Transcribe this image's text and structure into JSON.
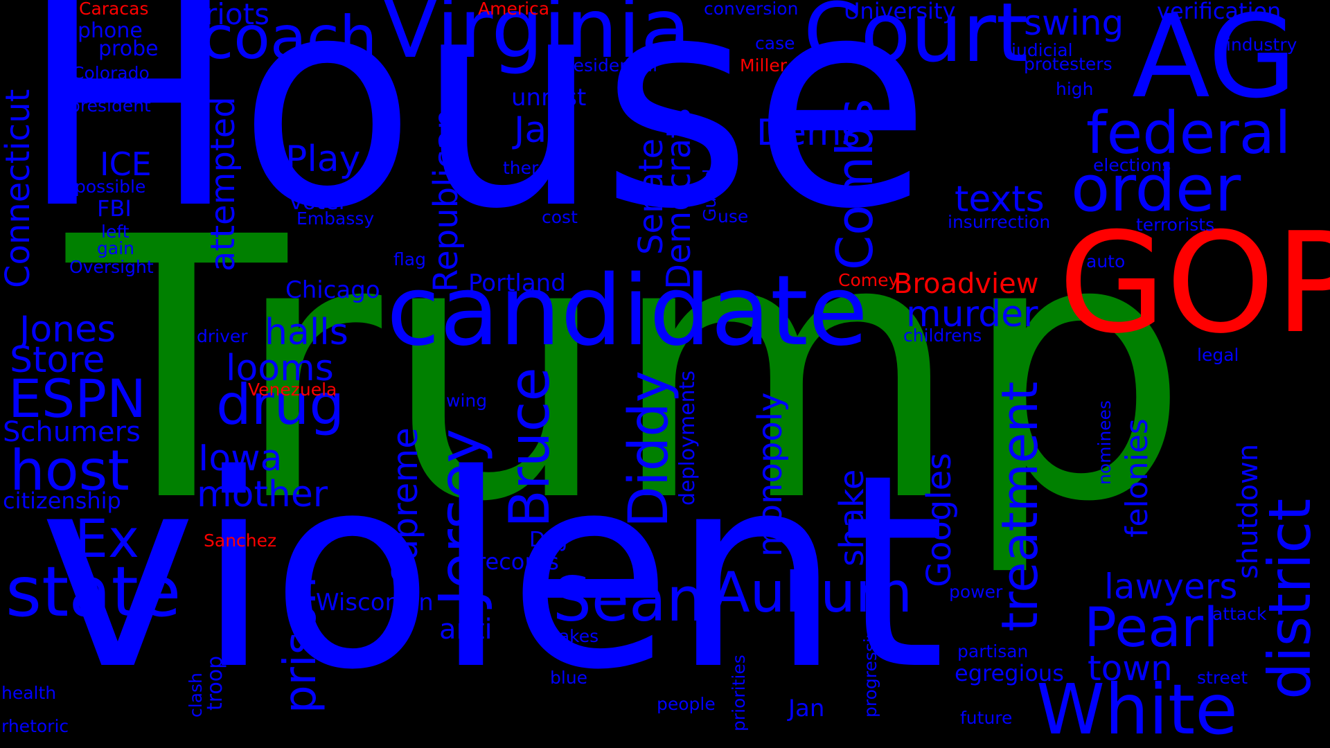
{
  "colors": {
    "background": "#000000",
    "blue": "#0000ff",
    "green": "#008000",
    "red": "#ff0000"
  },
  "words": {
    "Trump": "Trump",
    "House": "House",
    "Violent": "violent",
    "GOP": "GOP",
    "AG": "AG",
    "candidate": "candidate",
    "Virginia": "Virginia",
    "Court": "Court",
    "coach": "coach",
    "state": "state",
    "White": "White",
    "federal": "federal",
    "order": "order",
    "district": "district",
    "Pearl": "Pearl",
    "Sean": "Sean",
    "Auburn": "Auburn",
    "Combs": "Combs",
    "drug": "drug",
    "host": "host",
    "ESPN": "ESPN",
    "Jones": "Jones",
    "Store": "Store",
    "Ex": "Ex",
    "Connecticut": "Connecticut",
    "attempted": "attempted",
    "Republican": "Republican",
    "Senate": "Senate",
    "Democrats": "Democrats",
    "Jersey": "Jersey",
    "Bruce": "Bruce",
    "Diddy": "Diddy",
    "treatment": "treatment",
    "prison": "prison",
    "Supreme": "Supreme",
    "monopoly": "monopoly",
    "shake": "shake",
    "Googles": "Googles",
    "felonies": "felonies",
    "shutdown": "shutdown",
    "deployments": "deployments",
    "mother": "mother",
    "Iowa": "Iowa",
    "looms": "looms",
    "halls": "halls",
    "Play": "Play",
    "ICE": "ICE",
    "Schumers": "Schumers",
    "citizenship": "citizenship",
    "Jay": "Jay",
    "Dems": "Dems",
    "texts": "texts",
    "murder": "murder",
    "lawyers": "lawyers",
    "town": "town",
    "swing": "swing",
    "riots": "riots",
    "Broadview": "Broadview",
    "Chicago": "Chicago",
    "Portland": "Portland",
    "Wisconsin": "Wisconsin",
    "anti": "anti",
    "records": "records",
    "DOJ": "DOJ",
    "Jan": "Jan",
    "egregious": "egregious",
    "voter": "voter",
    "unrest": "unrest",
    "FBI": "FBI",
    "University": "University",
    "verification": "verification",
    "Caracas": "Caracas",
    "America": "America",
    "conversion": "conversion",
    "phone": "phone",
    "probe": "probe",
    "Colorado": "Colorado",
    "president": "president",
    "presidential": "presidential",
    "Miller": "Miller",
    "case": "case",
    "judicial": "judicial",
    "protesters": "protesters",
    "industry": "industry",
    "high": "high",
    "therapy": "therapy",
    "elections": "elections",
    "possible": "possible",
    "Embassy": "Embassy",
    "cost": "cost",
    "Guard": "Guard",
    "use": "use",
    "insurrection": "insurrection",
    "terrorists": "terrorists",
    "left": "left",
    "gain": "gain",
    "Oversight": "Oversight",
    "flag": "flag",
    "auto": "auto",
    "Comey": "Comey",
    "driver": "driver",
    "childrens": "childrens",
    "legal": "legal",
    "Venezuela": "Venezuela",
    "wing": "wing",
    "nominees": "nominees",
    "Sanchez": "Sanchez",
    "false": "false",
    "power": "power",
    "attack": "attack",
    "stakes": "stakes",
    "partisan": "partisan",
    "blue": "blue",
    "priorities": "priorities",
    "progressive": "progressive",
    "street": "street",
    "health": "health",
    "clash": "clash",
    "troop": "troop",
    "people": "people",
    "future": "future",
    "rhetoric": "rhetoric"
  }
}
